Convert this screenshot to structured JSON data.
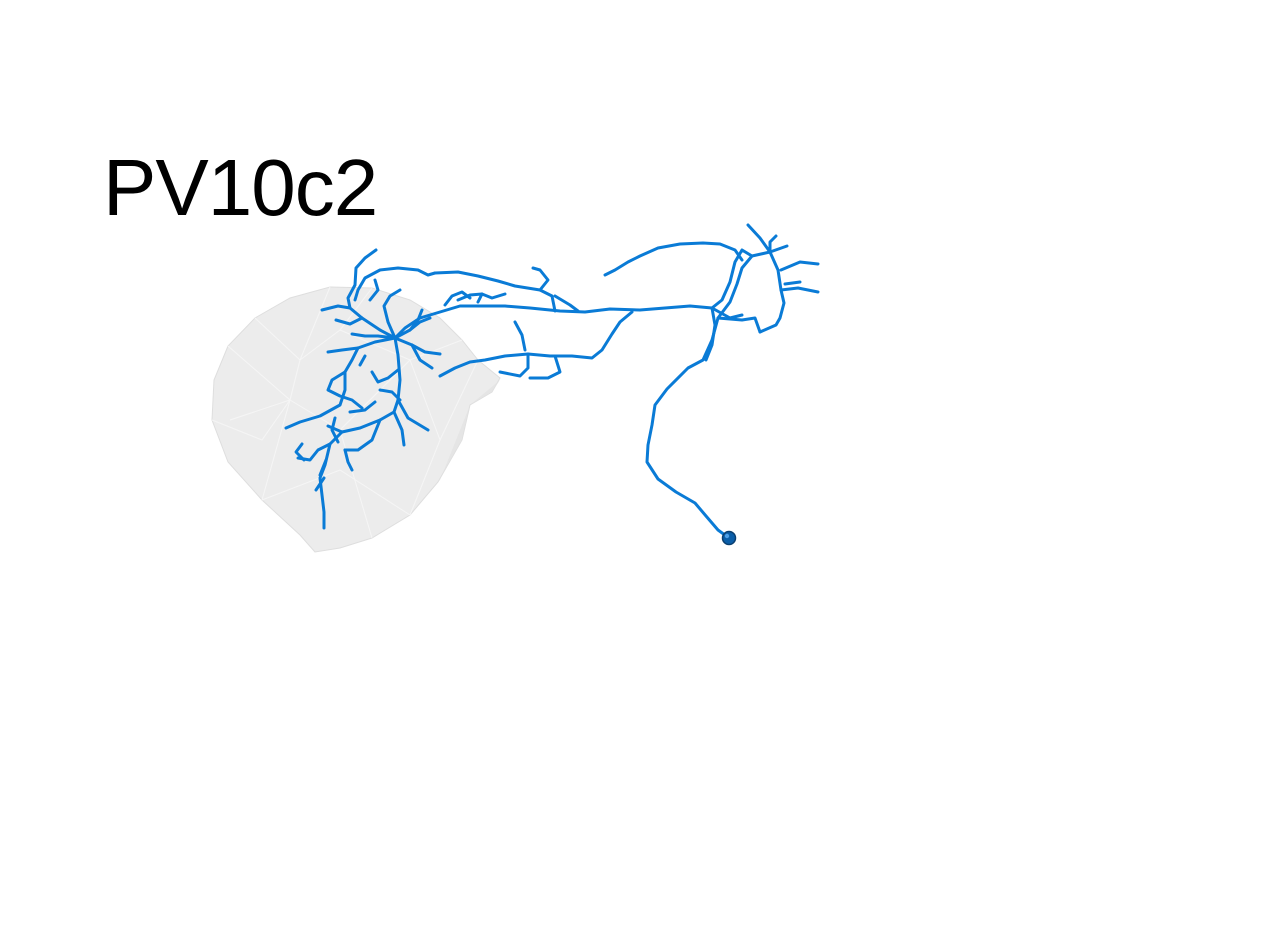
{
  "title": "PV10c2",
  "colors": {
    "neuron": "#0a7bd6",
    "soma": "#0b5ea8",
    "neuropil_fill": "#ececec",
    "neuropil_edge": "#d7d7d7",
    "background": "#ffffff"
  }
}
